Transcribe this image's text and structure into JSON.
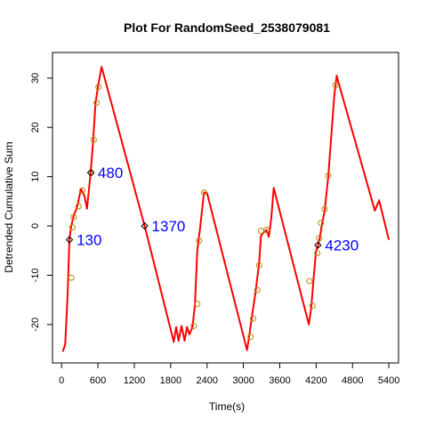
{
  "chart_data": {
    "type": "line",
    "title": "Plot For RandomSeed_2538079081",
    "xlabel": "Time(s)",
    "ylabel": "Detrended Cumulative Sum",
    "xlim": [
      -150,
      5560
    ],
    "ylim": [
      -27.8,
      35.2
    ],
    "xticks": [
      0,
      600,
      1200,
      1800,
      2400,
      3000,
      3600,
      4200,
      4800,
      5400
    ],
    "yticks": [
      -20,
      -10,
      0,
      10,
      20,
      30
    ],
    "line_color": "#ff0000",
    "circle_color": "#b8860b",
    "marker_color": "#000000",
    "label_color": "#0000ff",
    "series": [
      {
        "x": [
          20,
          60,
          100,
          130,
          160,
          200,
          260,
          320,
          380,
          420,
          480,
          520,
          560,
          600,
          660,
          1370,
          1850,
          1890,
          1930,
          1980,
          2030,
          2070,
          2110,
          2160,
          2200,
          2240,
          2290,
          2350,
          2400,
          3060,
          3100,
          3140,
          3200,
          3260,
          3290,
          3320,
          3380,
          3420,
          3460,
          3500,
          4080,
          4120,
          4160,
          4200,
          4230,
          4260,
          4300,
          4340,
          4400,
          4460,
          4500,
          4540,
          4560,
          5170,
          5240,
          5400
        ],
        "y": [
          -25.5,
          -24,
          -14,
          -2.5,
          0,
          2,
          4,
          7.5,
          6,
          3.5,
          10.8,
          17,
          25,
          28.2,
          32.3,
          0,
          -23.5,
          -20.5,
          -23.3,
          -20.3,
          -23.3,
          -20.5,
          -22,
          -20.5,
          -16,
          -5,
          0,
          6.8,
          6.7,
          -25.2,
          -22,
          -18.5,
          -13.5,
          -7.5,
          -2,
          -1.5,
          -0.8,
          -2.2,
          1.5,
          7.7,
          -20,
          -16.5,
          -10.5,
          -5,
          -4,
          -2.5,
          0.6,
          3,
          10,
          20,
          26.5,
          30.5,
          29.5,
          3.1,
          5.2,
          -2.8
        ]
      }
    ],
    "circles": [
      {
        "x": 160,
        "y": -10.5
      },
      {
        "x": 180,
        "y": -0.3
      },
      {
        "x": 200,
        "y": 1.8
      },
      {
        "x": 280,
        "y": 4
      },
      {
        "x": 340,
        "y": 7.2
      },
      {
        "x": 490,
        "y": 10.8
      },
      {
        "x": 530,
        "y": 17.5
      },
      {
        "x": 580,
        "y": 25
      },
      {
        "x": 610,
        "y": 28.2
      },
      {
        "x": 2180,
        "y": -20.3
      },
      {
        "x": 2240,
        "y": -15.8
      },
      {
        "x": 2270,
        "y": -3
      },
      {
        "x": 2350,
        "y": 6.8
      },
      {
        "x": 3120,
        "y": -22.5
      },
      {
        "x": 3160,
        "y": -18.8
      },
      {
        "x": 3230,
        "y": -13
      },
      {
        "x": 3260,
        "y": -8
      },
      {
        "x": 3290,
        "y": -1
      },
      {
        "x": 3380,
        "y": -0.8
      },
      {
        "x": 4090,
        "y": -11.2
      },
      {
        "x": 4140,
        "y": -16.2
      },
      {
        "x": 4220,
        "y": -5.5
      },
      {
        "x": 4250,
        "y": -2.5
      },
      {
        "x": 4280,
        "y": 0.6
      },
      {
        "x": 4340,
        "y": 3.4
      },
      {
        "x": 4400,
        "y": 10.2
      },
      {
        "x": 4520,
        "y": 28.6
      }
    ],
    "annotations": [
      {
        "label": "130",
        "x": 130,
        "y": -2.8
      },
      {
        "label": "480",
        "x": 480,
        "y": 10.8
      },
      {
        "label": "1370",
        "x": 1370,
        "y": 0
      },
      {
        "label": "4230",
        "x": 4230,
        "y": -3.9
      }
    ]
  }
}
